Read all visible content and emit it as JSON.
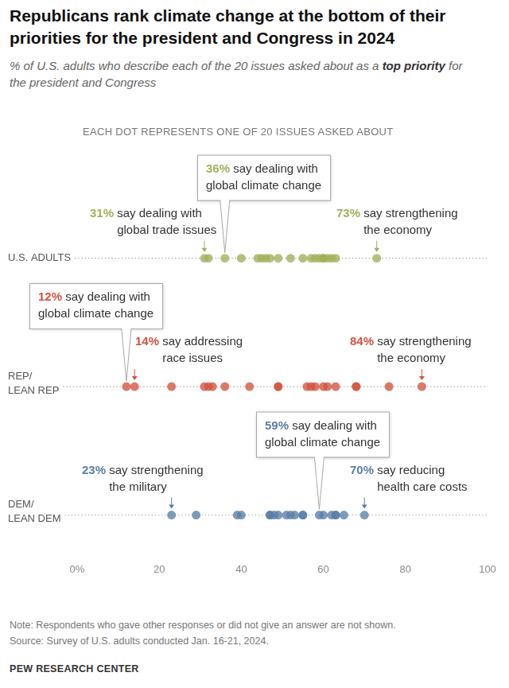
{
  "chart_data": {
    "type": "dot",
    "title": "Republicans rank climate change at the bottom of their priorities for the president and Congress in 2024",
    "subtitle": "% of U.S. adults who describe each of the 20 issues asked about as a top priority for the president and Congress",
    "subtitle_bold": "top priority",
    "dot_note": "EACH DOT REPRESENTS ONE OF 20 ISSUES ASKED ABOUT",
    "series": [
      {
        "name": "U.S. ADULTS",
        "color": "#a3b05a",
        "values": [
          31,
          32,
          36,
          40,
          44,
          45,
          46,
          47,
          49,
          52,
          55,
          57,
          58,
          59,
          60,
          60,
          61,
          62,
          63,
          73
        ],
        "highlight": {
          "value": 36,
          "label": "36%",
          "text": "say dealing with\nglobal climate change"
        },
        "callouts": [
          {
            "value": 31,
            "label": "31%",
            "text": "say dealing with\nglobal trade issues"
          },
          {
            "value": 73,
            "label": "73%",
            "text": "say strengthening\nthe economy"
          }
        ]
      },
      {
        "name": "REP/\nLEAN REP",
        "color": "#d2533f",
        "values": [
          12,
          14,
          23,
          31,
          32,
          33,
          36,
          42,
          49,
          49,
          56,
          57,
          58,
          60,
          61,
          63,
          68,
          68,
          76,
          84
        ],
        "highlight": {
          "value": 12,
          "label": "12%",
          "text": "say dealing with\nglobal climate change"
        },
        "callouts": [
          {
            "value": 14,
            "label": "14%",
            "text": "say addressing\nrace issues"
          },
          {
            "value": 84,
            "label": "84%",
            "text": "say strengthening\nthe economy"
          }
        ]
      },
      {
        "name": "DEM/\nLEAN DEM",
        "color": "#5a7fa6",
        "values": [
          23,
          29,
          39,
          40,
          47,
          47,
          48,
          49,
          51,
          52,
          53,
          55,
          55,
          59,
          60,
          62,
          63,
          63,
          65,
          70
        ],
        "highlight": {
          "value": 59,
          "label": "59%",
          "text": "say dealing with\nglobal climate change"
        },
        "callouts": [
          {
            "value": 23,
            "label": "23%",
            "text": "say strengthening\nthe military"
          },
          {
            "value": 70,
            "label": "70%",
            "text": "say reducing\nhealth care costs"
          }
        ]
      }
    ],
    "xlim": [
      0,
      100
    ],
    "xticks": [
      {
        "value": 0,
        "label": "0%"
      },
      20,
      40,
      60,
      80,
      100
    ],
    "grid": false,
    "note": "Note: Respondents who gave other responses or did not give an answer are not shown.",
    "source": "Source: Survey of U.S. adults conducted Jan. 16-21, 2024.",
    "credit": "PEW RESEARCH CENTER"
  }
}
